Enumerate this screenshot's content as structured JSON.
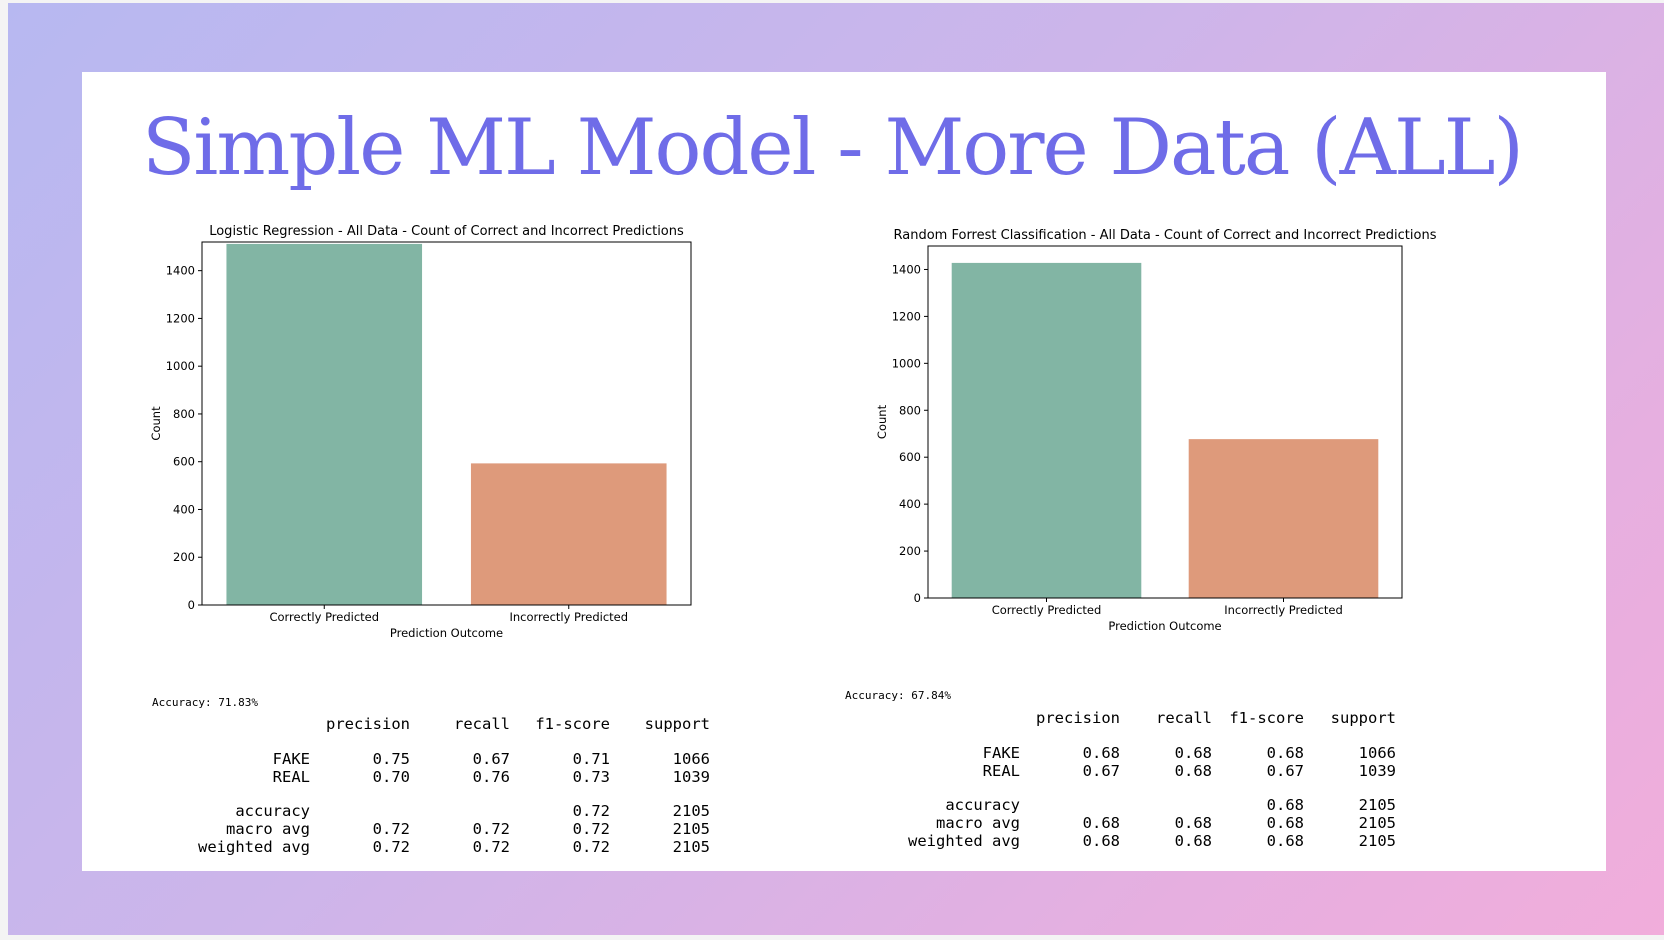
{
  "slide": {
    "title": "Simple ML Model - More Data (ALL)",
    "title_color": "#6f6ce8",
    "background_gradient": [
      "#b7b8f1",
      "#cdb5ea",
      "#e6afe0",
      "#f1addb"
    ]
  },
  "chart_data": [
    {
      "type": "bar",
      "title": "Logistic Regression - All Data - Count of Correct and Incorrect Predictions",
      "xlabel": "Prediction Outcome",
      "ylabel": "Count",
      "categories": [
        "Correctly Predicted",
        "Incorrectly Predicted"
      ],
      "values": [
        1512,
        593
      ],
      "colors": [
        "#82b5a4",
        "#de9a7b"
      ],
      "ylim": [
        0,
        1520
      ],
      "yticks": [
        0,
        200,
        400,
        600,
        800,
        1000,
        1200,
        1400
      ],
      "grid": false,
      "legend": "none"
    },
    {
      "type": "bar",
      "title": "Random Forrest Classification - All Data - Count of Correct and Incorrect Predictions",
      "xlabel": "Prediction Outcome",
      "ylabel": "Count",
      "categories": [
        "Correctly Predicted",
        "Incorrectly Predicted"
      ],
      "values": [
        1428,
        677
      ],
      "colors": [
        "#82b5a4",
        "#de9a7b"
      ],
      "ylim": [
        0,
        1500
      ],
      "yticks": [
        0,
        200,
        400,
        600,
        800,
        1000,
        1200,
        1400
      ],
      "grid": false,
      "legend": "none"
    }
  ],
  "reports": [
    {
      "accuracy_text": "Accuracy: 71.83%",
      "columns": [
        "precision",
        "recall",
        "f1-score",
        "support"
      ],
      "rows": [
        {
          "label": "FAKE",
          "precision": "0.75",
          "recall": "0.67",
          "f1": "0.71",
          "support": "1066"
        },
        {
          "label": "REAL",
          "precision": "0.70",
          "recall": "0.76",
          "f1": "0.73",
          "support": "1039"
        }
      ],
      "summary": [
        {
          "label": "accuracy",
          "precision": "",
          "recall": "",
          "f1": "0.72",
          "support": "2105"
        },
        {
          "label": "macro avg",
          "precision": "0.72",
          "recall": "0.72",
          "f1": "0.72",
          "support": "2105"
        },
        {
          "label": "weighted avg",
          "precision": "0.72",
          "recall": "0.72",
          "f1": "0.72",
          "support": "2105"
        }
      ]
    },
    {
      "accuracy_text": "Accuracy: 67.84%",
      "columns": [
        "precision",
        "recall",
        "f1-score",
        "support"
      ],
      "rows": [
        {
          "label": "FAKE",
          "precision": "0.68",
          "recall": "0.68",
          "f1": "0.68",
          "support": "1066"
        },
        {
          "label": "REAL",
          "precision": "0.67",
          "recall": "0.68",
          "f1": "0.67",
          "support": "1039"
        }
      ],
      "summary": [
        {
          "label": "accuracy",
          "precision": "",
          "recall": "",
          "f1": "0.68",
          "support": "2105"
        },
        {
          "label": "macro avg",
          "precision": "0.68",
          "recall": "0.68",
          "f1": "0.68",
          "support": "2105"
        },
        {
          "label": "weighted avg",
          "precision": "0.68",
          "recall": "0.68",
          "f1": "0.68",
          "support": "2105"
        }
      ]
    }
  ]
}
